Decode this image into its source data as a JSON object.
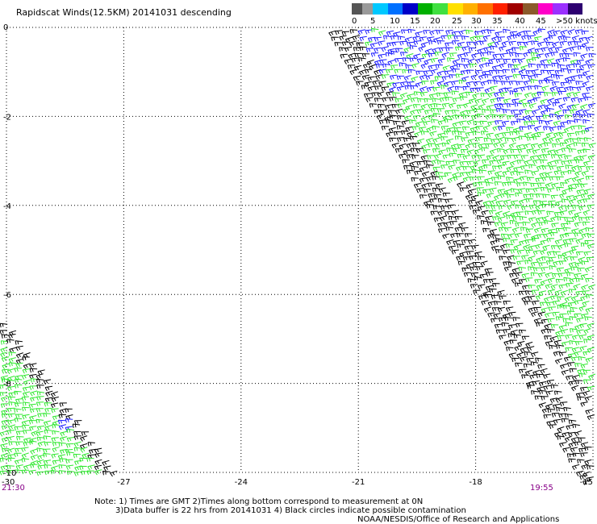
{
  "title": "Rapidscat Winds(12.5KM) 20141031 descending",
  "legend": {
    "colors": [
      "#555555",
      "#9a9a9a",
      "#00c8ff",
      "#0070ff",
      "#0000c8",
      "#00b000",
      "#40e040",
      "#ffe000",
      "#ffb000",
      "#ff7000",
      "#ff2000",
      "#a00000",
      "#8b5a2b",
      "#ff00c8",
      "#9b30ff",
      "#2d0070"
    ],
    "labels": [
      "0",
      "5",
      "10",
      "15",
      "20",
      "25",
      "30",
      "35",
      "40",
      "45",
      ">50 knots"
    ]
  },
  "chart_data": {
    "type": "wind-barb-map",
    "x_ticks": [
      "-30",
      "-27",
      "-24",
      "-21",
      "-18",
      "-15"
    ],
    "y_ticks": [
      "0",
      "-2",
      "-4",
      "-6",
      "-8",
      "-10"
    ],
    "xlim": [
      -30,
      -15
    ],
    "ylim": [
      -10,
      0
    ],
    "grid": true,
    "swaths": [
      {
        "side": "east",
        "dominant_speeds": [
          "15-20 (blue)",
          "20-25 (green)",
          "0-5 (black, swath edge)"
        ]
      },
      {
        "side": "west",
        "dominant_speeds": [
          "20-25 (green)",
          "0-5 (black, swath edge)"
        ]
      }
    ]
  },
  "times": {
    "left": "21:30",
    "right": "19:55"
  },
  "notes": {
    "line1": "Note: 1) Times are GMT 2)Times along bottom correspond to measurement at 0N",
    "line2": "3)Data buffer is 22 hrs from 20141031 4) Black circles indicate possible contamination",
    "credit": "NOAA/NESDIS/Office of Research and Applications"
  }
}
